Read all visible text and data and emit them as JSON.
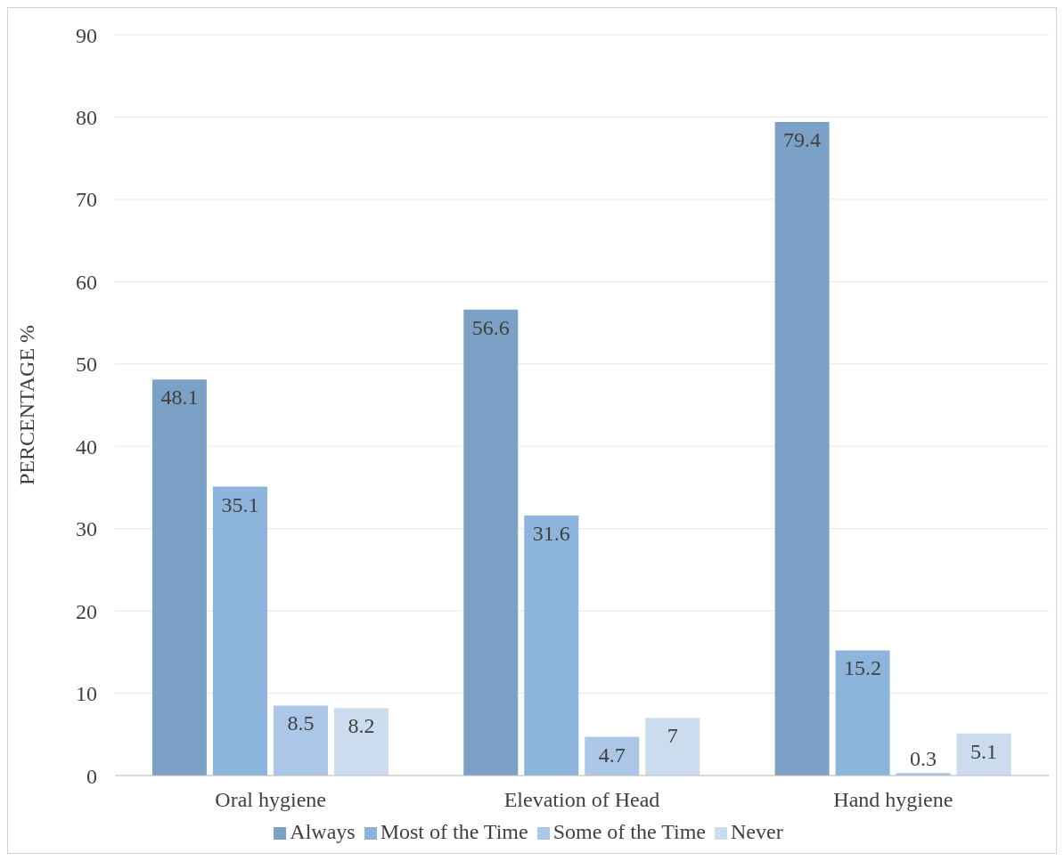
{
  "chart_data": {
    "type": "bar",
    "ylabel": "PERCENTAGE %",
    "categories": [
      "Oral hygiene",
      "Elevation of Head",
      "Hand hygiene"
    ],
    "series": [
      {
        "name": "Always",
        "color": "#7ba2c6",
        "values": [
          48.1,
          56.6,
          79.4
        ]
      },
      {
        "name": "Most of the Time",
        "color": "#8cb4dc",
        "values": [
          35.1,
          31.6,
          15.2
        ]
      },
      {
        "name": "Some of the Time",
        "color": "#abc6e6",
        "values": [
          8.5,
          4.7,
          0.3
        ]
      },
      {
        "name": "Never",
        "color": "#ccdcef",
        "values": [
          8.2,
          7,
          5.1
        ]
      }
    ],
    "ylim": [
      0,
      90
    ],
    "yticks": [
      0,
      10,
      20,
      30,
      40,
      50,
      60,
      70,
      80,
      90
    ],
    "grid": "y",
    "legend": "bottom",
    "data_labels": true
  }
}
